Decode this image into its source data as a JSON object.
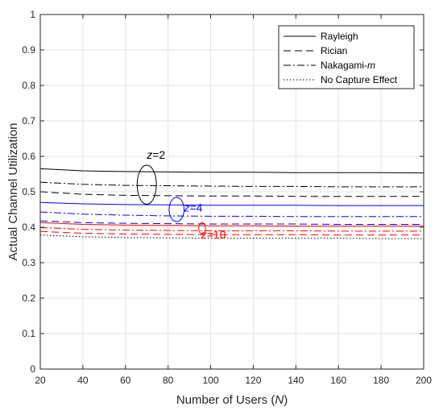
{
  "chart_data": {
    "type": "line",
    "xlabel_prefix": "Number of Users (",
    "xlabel_var": "N",
    "xlabel_suffix": ")",
    "ylabel": "Actual Channel Utilization",
    "xlim": [
      20,
      200
    ],
    "ylim": [
      0,
      1
    ],
    "x_ticks": [
      "20",
      "40",
      "60",
      "80",
      "100",
      "120",
      "140",
      "160",
      "180",
      "200"
    ],
    "y_ticks": [
      "0",
      "0.1",
      "0.2",
      "0.3",
      "0.4",
      "0.5",
      "0.6",
      "0.7",
      "0.8",
      "0.9",
      "1"
    ],
    "grid": true,
    "legend_position": "top-right",
    "legend": [
      {
        "label": "Rayleigh",
        "label_italic_suffix": "",
        "style": "solid"
      },
      {
        "label": "Rician",
        "label_italic_suffix": "",
        "style": "dashed"
      },
      {
        "label": "Nakagami-",
        "label_italic_suffix": "m",
        "style": "dashdot"
      },
      {
        "label": "No Capture Effect",
        "label_italic_suffix": "",
        "style": "dotted"
      }
    ],
    "x": [
      20,
      40,
      60,
      80,
      100,
      120,
      140,
      160,
      180,
      200
    ],
    "series": [
      {
        "group": "z=2",
        "style": "solid",
        "color": "#000000",
        "values": [
          0.565,
          0.559,
          0.557,
          0.556,
          0.555,
          0.555,
          0.554,
          0.554,
          0.554,
          0.553
        ]
      },
      {
        "group": "z=2",
        "style": "dashdot",
        "color": "#000000",
        "values": [
          0.527,
          0.521,
          0.518,
          0.517,
          0.516,
          0.515,
          0.515,
          0.514,
          0.514,
          0.514
        ]
      },
      {
        "group": "z=2",
        "style": "dashed",
        "color": "#000000",
        "values": [
          0.5,
          0.493,
          0.49,
          0.489,
          0.488,
          0.488,
          0.487,
          0.487,
          0.487,
          0.487
        ]
      },
      {
        "group": "z=4",
        "style": "solid",
        "color": "#0000ff",
        "values": [
          0.47,
          0.466,
          0.464,
          0.463,
          0.462,
          0.462,
          0.462,
          0.461,
          0.461,
          0.461
        ]
      },
      {
        "group": "z=4",
        "style": "dashdot",
        "color": "#0000ff",
        "values": [
          0.443,
          0.437,
          0.434,
          0.432,
          0.431,
          0.431,
          0.43,
          0.43,
          0.43,
          0.43
        ]
      },
      {
        "group": "z=4",
        "style": "dashed",
        "color": "#0000ff",
        "values": [
          0.418,
          0.413,
          0.411,
          0.41,
          0.409,
          0.409,
          0.409,
          0.408,
          0.408,
          0.408
        ]
      },
      {
        "group": "z=10",
        "style": "solid",
        "color": "#ff0000",
        "values": [
          0.413,
          0.408,
          0.406,
          0.405,
          0.404,
          0.404,
          0.403,
          0.403,
          0.403,
          0.403
        ]
      },
      {
        "group": "z=10",
        "style": "dashdot",
        "color": "#ff0000",
        "values": [
          0.399,
          0.394,
          0.392,
          0.391,
          0.39,
          0.39,
          0.39,
          0.389,
          0.389,
          0.389
        ]
      },
      {
        "group": "z=10",
        "style": "dashed",
        "color": "#ff0000",
        "values": [
          0.388,
          0.383,
          0.381,
          0.38,
          0.379,
          0.379,
          0.379,
          0.378,
          0.378,
          0.378
        ]
      },
      {
        "group": "none",
        "style": "dotted",
        "color": "#000000",
        "values": [
          0.378,
          0.373,
          0.371,
          0.37,
          0.369,
          0.369,
          0.369,
          0.369,
          0.368,
          0.368
        ]
      }
    ],
    "annotations": [
      {
        "var": "z",
        "text": "=2",
        "color": "#000000",
        "x": 70,
        "y": 0.52,
        "rx": 4.5,
        "ry": 0.055,
        "label_x": 70,
        "label_y": 0.593
      },
      {
        "var": "z",
        "text": "=4",
        "color": "#0000ff",
        "x": 84,
        "y": 0.45,
        "rx": 3.5,
        "ry": 0.034,
        "label_x": 87.5,
        "label_y": 0.444
      },
      {
        "var": "z",
        "text": "=10",
        "color": "#ff0000",
        "x": 96,
        "y": 0.397,
        "rx": 1.6,
        "ry": 0.016,
        "label_x": 95.5,
        "label_y": 0.368
      }
    ]
  }
}
